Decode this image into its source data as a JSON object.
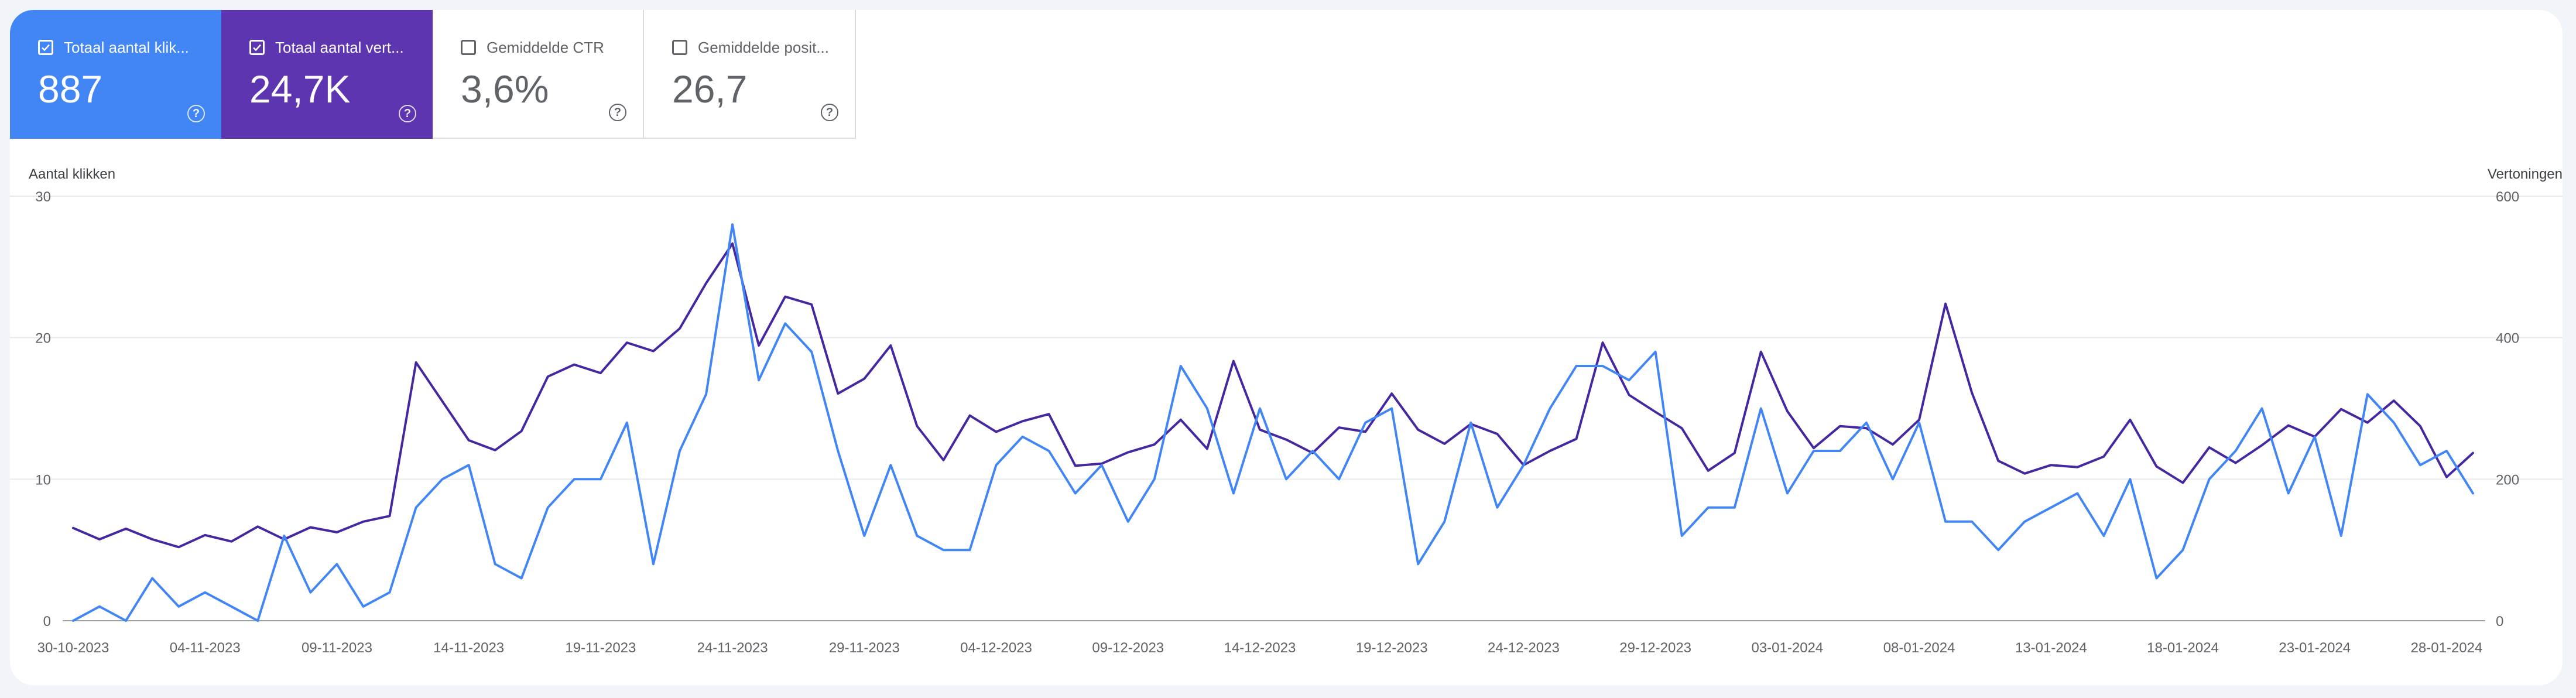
{
  "cards": [
    {
      "title": "Totaal aantal klik...",
      "value": "887",
      "checked": true,
      "color": "#4285f4"
    },
    {
      "title": "Totaal aantal vert...",
      "value": "24,7K",
      "checked": true,
      "color": "#5e35b1"
    },
    {
      "title": "Gemiddelde CTR",
      "value": "3,6%",
      "checked": false
    },
    {
      "title": "Gemiddelde posit...",
      "value": "26,7",
      "checked": false
    }
  ],
  "help_glyph": "?",
  "check_glyph": "✓",
  "colors": {
    "clicks": "#4285f4",
    "impressions": "#4527a0",
    "grid": "#e8eaed",
    "axis": "#9aa0a6",
    "text": "#5f6368"
  },
  "chart_data": {
    "type": "line",
    "ylabel_left": "Aantal klikken",
    "ylabel_right": "Vertoningen",
    "ylim_left": [
      0,
      30
    ],
    "ylim_right": [
      0,
      600
    ],
    "yticks_left": [
      "0",
      "10",
      "20",
      "30"
    ],
    "yticks_right": [
      "0",
      "200",
      "400",
      "600"
    ],
    "grid": true,
    "x_start": "30-10-2023",
    "x": [
      "30-10-2023",
      "31-10-2023",
      "01-11-2023",
      "02-11-2023",
      "03-11-2023",
      "04-11-2023",
      "05-11-2023",
      "06-11-2023",
      "07-11-2023",
      "08-11-2023",
      "09-11-2023",
      "10-11-2023",
      "11-11-2023",
      "12-11-2023",
      "13-11-2023",
      "14-11-2023",
      "15-11-2023",
      "16-11-2023",
      "17-11-2023",
      "18-11-2023",
      "19-11-2023",
      "20-11-2023",
      "21-11-2023",
      "22-11-2023",
      "23-11-2023",
      "24-11-2023",
      "25-11-2023",
      "26-11-2023",
      "27-11-2023",
      "28-11-2023",
      "29-11-2023",
      "30-11-2023",
      "01-12-2023",
      "02-12-2023",
      "03-12-2023",
      "04-12-2023",
      "05-12-2023",
      "06-12-2023",
      "07-12-2023",
      "08-12-2023",
      "09-12-2023",
      "10-12-2023",
      "11-12-2023",
      "12-12-2023",
      "13-12-2023",
      "14-12-2023",
      "15-12-2023",
      "16-12-2023",
      "17-12-2023",
      "18-12-2023",
      "19-12-2023",
      "20-12-2023",
      "21-12-2023",
      "22-12-2023",
      "23-12-2023",
      "24-12-2023",
      "25-12-2023",
      "26-12-2023",
      "27-12-2023",
      "28-12-2023",
      "29-12-2023",
      "30-12-2023",
      "31-12-2023",
      "01-01-2024",
      "02-01-2024",
      "03-01-2024",
      "04-01-2024",
      "05-01-2024",
      "06-01-2024",
      "07-01-2024",
      "08-01-2024",
      "09-01-2024",
      "10-01-2024",
      "11-01-2024",
      "12-01-2024",
      "13-01-2024",
      "14-01-2024",
      "15-01-2024",
      "16-01-2024",
      "17-01-2024",
      "18-01-2024",
      "19-01-2024",
      "20-01-2024",
      "21-01-2024",
      "22-01-2024",
      "23-01-2024",
      "24-01-2024",
      "25-01-2024",
      "26-01-2024",
      "27-01-2024",
      "28-01-2024",
      "29-01-2024"
    ],
    "xticks": [
      {
        "label": "30-10-2023",
        "index": 0
      },
      {
        "label": "04-11-2023",
        "index": 5
      },
      {
        "label": "09-11-2023",
        "index": 10
      },
      {
        "label": "14-11-2023",
        "index": 15
      },
      {
        "label": "19-11-2023",
        "index": 20
      },
      {
        "label": "24-11-2023",
        "index": 25
      },
      {
        "label": "29-11-2023",
        "index": 30
      },
      {
        "label": "04-12-2023",
        "index": 35
      },
      {
        "label": "09-12-2023",
        "index": 40
      },
      {
        "label": "14-12-2023",
        "index": 45
      },
      {
        "label": "19-12-2023",
        "index": 50
      },
      {
        "label": "24-12-2023",
        "index": 55
      },
      {
        "label": "29-12-2023",
        "index": 60
      },
      {
        "label": "03-01-2024",
        "index": 65
      },
      {
        "label": "08-01-2024",
        "index": 70
      },
      {
        "label": "13-01-2024",
        "index": 75
      },
      {
        "label": "18-01-2024",
        "index": 80
      },
      {
        "label": "23-01-2024",
        "index": 85
      },
      {
        "label": "28-01-2024",
        "index": 90
      }
    ],
    "series": [
      {
        "name": "Totaal aantal vert...",
        "axis": "right",
        "color": "#4527a0",
        "values": [
          131,
          115,
          130,
          115,
          104,
          121,
          112,
          133,
          115,
          132,
          125,
          140,
          148,
          365,
          310,
          255,
          241,
          268,
          345,
          362,
          350,
          393,
          381,
          413,
          477,
          533,
          389,
          458,
          447,
          321,
          342,
          389,
          275,
          227,
          290,
          267,
          282,
          292,
          219,
          222,
          238,
          249,
          284,
          243,
          367,
          270,
          256,
          237,
          273,
          267,
          321,
          270,
          250,
          278,
          264,
          220,
          240,
          257,
          393,
          319,
          295,
          272,
          212,
          237,
          380,
          296,
          244,
          275,
          272,
          249,
          284,
          448,
          322,
          226,
          208,
          220,
          217,
          232,
          284,
          218,
          195,
          245,
          223,
          248,
          276,
          260,
          299,
          280,
          311,
          275,
          203,
          237
        ]
      },
      {
        "name": "Totaal aantal klik...",
        "axis": "left",
        "color": "#4285f4",
        "values": [
          0,
          1,
          0,
          3,
          1,
          2,
          1,
          0,
          6,
          2,
          4,
          1,
          2,
          8,
          10,
          11,
          4,
          3,
          8,
          10,
          10,
          14,
          4,
          12,
          16,
          28,
          17,
          21,
          19,
          12,
          6,
          11,
          6,
          5,
          5,
          11,
          13,
          12,
          9,
          11,
          7,
          10,
          18,
          15,
          9,
          15,
          10,
          12,
          10,
          14,
          15,
          4,
          7,
          14,
          8,
          11,
          15,
          18,
          18,
          17,
          19,
          6,
          8,
          8,
          15,
          9,
          12,
          12,
          14,
          10,
          14,
          7,
          7,
          5,
          7,
          8,
          9,
          6,
          10,
          3,
          5,
          10,
          12,
          15,
          9,
          13,
          6,
          16,
          14,
          11,
          12,
          9
        ]
      }
    ]
  }
}
